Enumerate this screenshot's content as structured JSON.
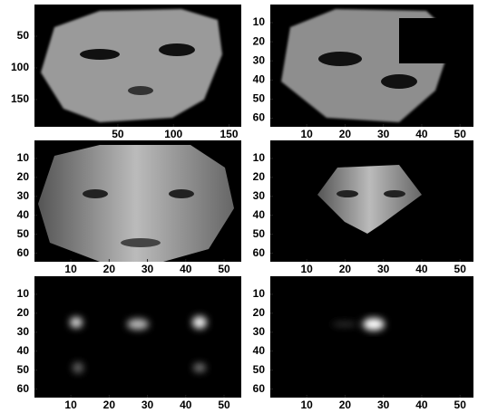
{
  "chart_data": [
    {
      "type": "image",
      "xlim": [
        -25,
        161
      ],
      "ylim": [
        193,
        0
      ],
      "xticks": [
        50,
        100,
        150
      ],
      "yticks": [
        50,
        100,
        150
      ]
    },
    {
      "type": "image",
      "xlim": [
        0.5,
        53.5
      ],
      "ylim": [
        64.5,
        0.5
      ],
      "xticks": [
        10,
        20,
        30,
        40,
        50
      ],
      "yticks": [
        10,
        20,
        30,
        40,
        50,
        60
      ]
    },
    {
      "type": "image",
      "xlim": [
        0.5,
        54.5
      ],
      "ylim": [
        64.5,
        0.5
      ],
      "xticks": [
        10,
        20,
        30,
        40,
        50
      ],
      "yticks": [
        10,
        20,
        30,
        40,
        50,
        60
      ]
    },
    {
      "type": "image",
      "xlim": [
        0.5,
        53.5
      ],
      "ylim": [
        64.5,
        0.5
      ],
      "xticks": [
        10,
        20,
        30,
        40,
        50
      ],
      "yticks": [
        10,
        20,
        30,
        40,
        50,
        60
      ]
    },
    {
      "type": "image",
      "xlim": [
        0.5,
        54.5
      ],
      "ylim": [
        64.5,
        0.5
      ],
      "xticks": [
        10,
        20,
        30,
        40,
        50
      ],
      "yticks": [
        10,
        20,
        30,
        40,
        50,
        60
      ]
    },
    {
      "type": "image",
      "xlim": [
        0.5,
        53.5
      ],
      "ylim": [
        64.5,
        0.5
      ],
      "xticks": [
        10,
        20,
        30,
        40,
        50
      ],
      "yticks": [
        10,
        20,
        30,
        40,
        50,
        60
      ]
    }
  ]
}
